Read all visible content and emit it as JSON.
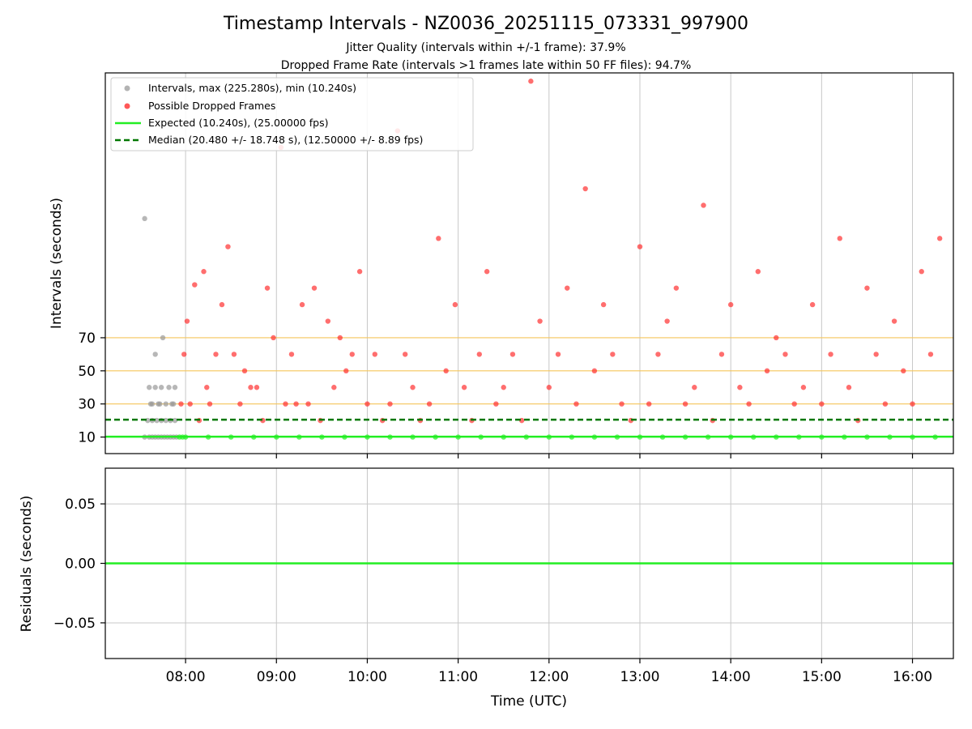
{
  "figure": {
    "title": "Timestamp Intervals - NZ0036_20251115_073331_997900",
    "subtitle_1": "Jitter Quality (intervals within +/-1 frame): 37.9%",
    "subtitle_2": "Dropped Frame Rate (intervals >1 frames late within 50 FF files): 94.7%"
  },
  "colors": {
    "normal": "#999999",
    "dropped": "#ff2020",
    "expected": "#22ee22",
    "median": "#007700",
    "threshold": "#f5c55a",
    "grid": "#c8c8c8"
  },
  "chart_data": [
    {
      "type": "scatter",
      "ylabel": "Intervals (seconds)",
      "yticks": [
        10,
        30,
        50,
        70
      ],
      "xticks": [
        "08:00",
        "09:00",
        "10:00",
        "11:00",
        "12:00",
        "13:00",
        "14:00",
        "15:00",
        "16:00"
      ],
      "xlim": [
        "07:07",
        "16:27"
      ],
      "ylim": [
        0,
        230
      ],
      "grid": true,
      "legend_position": "upper left",
      "legend": [
        {
          "key": "intervals",
          "label": "Intervals, max (225.280s), min (10.240s)"
        },
        {
          "key": "dropped",
          "label": "Possible Dropped Frames"
        },
        {
          "key": "expected",
          "label": "Expected (10.240s), (25.00000 fps)"
        },
        {
          "key": "median",
          "label": "Median (20.480 +/- 18.748 s), (12.50000 +/- 8.89 fps)"
        }
      ],
      "expected_interval": 10.24,
      "median_interval": 20.48,
      "threshold_lines": [
        30,
        50,
        70
      ],
      "series": [
        {
          "name": "Intervals",
          "time_minutes_after_07_00": [
            33,
            36,
            38,
            40,
            42,
            44,
            46,
            48,
            50,
            52,
            54,
            56,
            58,
            35,
            38,
            41,
            44,
            47,
            50,
            53,
            37,
            42,
            47,
            52,
            36,
            40,
            44,
            49,
            53,
            38,
            43,
            51,
            40,
            33,
            45,
            60,
            75,
            90,
            105,
            120,
            135,
            150,
            165,
            180,
            195,
            210,
            225,
            240,
            255,
            270,
            285,
            300,
            315,
            330,
            345,
            360,
            375,
            390,
            405,
            420,
            435,
            450,
            465,
            480,
            495,
            510,
            525,
            540,
            555
          ],
          "values": [
            10,
            10,
            10,
            10,
            10,
            10,
            10,
            10,
            10,
            10,
            10,
            10,
            10,
            20,
            20,
            20,
            20,
            20,
            20,
            20,
            30,
            30,
            30,
            30,
            40,
            40,
            40,
            40,
            40,
            30,
            30,
            30,
            60,
            142,
            70,
            10,
            10,
            10,
            10,
            10,
            10,
            10,
            10,
            10,
            10,
            10,
            10,
            10,
            10,
            10,
            10,
            10,
            10,
            10,
            10,
            10,
            10,
            10,
            10,
            10,
            10,
            10,
            10,
            10,
            10,
            10,
            10,
            10,
            10
          ]
        },
        {
          "name": "Possible Dropped Frames",
          "time_minutes_after_07_00": [
            57,
            59,
            61,
            63,
            66,
            69,
            72,
            74,
            76,
            80,
            84,
            88,
            92,
            96,
            99,
            103,
            107,
            111,
            114,
            118,
            123,
            126,
            130,
            133,
            137,
            141,
            145,
            149,
            154,
            158,
            162,
            166,
            170,
            175,
            180,
            185,
            190,
            195,
            200,
            205,
            210,
            215,
            221,
            227,
            232,
            238,
            244,
            249,
            254,
            259,
            265,
            270,
            276,
            282,
            288,
            294,
            300,
            306,
            312,
            318,
            324,
            330,
            336,
            342,
            348,
            354,
            360,
            366,
            372,
            378,
            384,
            390,
            396,
            402,
            408,
            414,
            420,
            426,
            432,
            438,
            444,
            450,
            456,
            462,
            468,
            474,
            480,
            486,
            492,
            498,
            504,
            510,
            516,
            522,
            528,
            534,
            540,
            546,
            552,
            558
          ],
          "values": [
            30,
            60,
            80,
            30,
            102,
            20,
            110,
            40,
            30,
            60,
            90,
            125,
            60,
            30,
            50,
            40,
            40,
            20,
            100,
            70,
            185,
            30,
            60,
            30,
            90,
            30,
            100,
            20,
            80,
            40,
            70,
            50,
            60,
            110,
            30,
            60,
            20,
            30,
            195,
            60,
            40,
            20,
            30,
            130,
            50,
            90,
            40,
            20,
            60,
            110,
            30,
            40,
            60,
            20,
            225,
            80,
            40,
            60,
            100,
            30,
            160,
            50,
            90,
            60,
            30,
            20,
            125,
            30,
            60,
            80,
            100,
            30,
            40,
            150,
            20,
            60,
            90,
            40,
            30,
            110,
            50,
            70,
            60,
            30,
            40,
            90,
            30,
            60,
            130,
            40,
            20,
            100,
            60,
            30,
            80,
            50,
            30,
            110,
            60,
            130
          ]
        },
        {
          "name": "Expected",
          "values": [
            10.24
          ]
        },
        {
          "name": "Median",
          "values": [
            20.48
          ]
        }
      ]
    },
    {
      "type": "line",
      "ylabel": "Residuals (seconds)",
      "xlabel": "Time (UTC)",
      "yticks": [
        "0.05",
        "0.00",
        "−0.05"
      ],
      "xticks": [
        "08:00",
        "09:00",
        "10:00",
        "11:00",
        "12:00",
        "13:00",
        "14:00",
        "15:00",
        "16:00"
      ],
      "ylim": [
        -0.08,
        0.08
      ],
      "grid": true,
      "series": [
        {
          "name": "Residuals",
          "values": [
            0.0
          ]
        }
      ]
    }
  ]
}
